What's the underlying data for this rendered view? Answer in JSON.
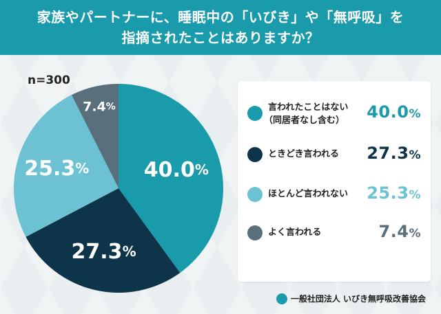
{
  "title": {
    "line1": "家族やパートナーに、睡眠中の「いびき」や「無呼吸」を",
    "line2": "指摘されたことはありますか？"
  },
  "sample": "n=300",
  "footer": {
    "org": "一般社団法人 いびき無呼吸改善協会"
  },
  "colors": {
    "header": "#1a9bab"
  },
  "chart_data": {
    "type": "pie",
    "title": "家族やパートナーに、睡眠中の「いびき」や「無呼吸」を指摘されたことはありますか？",
    "unit": "%",
    "labels": [
      "言われたことはない（同居者なし含む）",
      "ときどき言われる",
      "ほとんど言われない",
      "よく言われる"
    ],
    "legend_lines": [
      [
        "言われたことはない",
        "（同居者なし含む）"
      ],
      [
        "ときどき言われる"
      ],
      [
        "ほとんど言われない"
      ],
      [
        "よく言われる"
      ]
    ],
    "values": [
      40.0,
      27.3,
      25.3,
      7.4
    ],
    "display": [
      "40.0",
      "27.3",
      "25.3",
      "7.4"
    ],
    "colors": [
      "#1a9bab",
      "#0d3448",
      "#6cc1d3",
      "#5a6f7c"
    ],
    "legend_value_colors": [
      "#1a9bab",
      "#0d3448",
      "#6cc1d3",
      "#5a6f7c"
    ],
    "start_angle_deg": 0,
    "direction": "clockwise",
    "legend_placement": "right"
  }
}
